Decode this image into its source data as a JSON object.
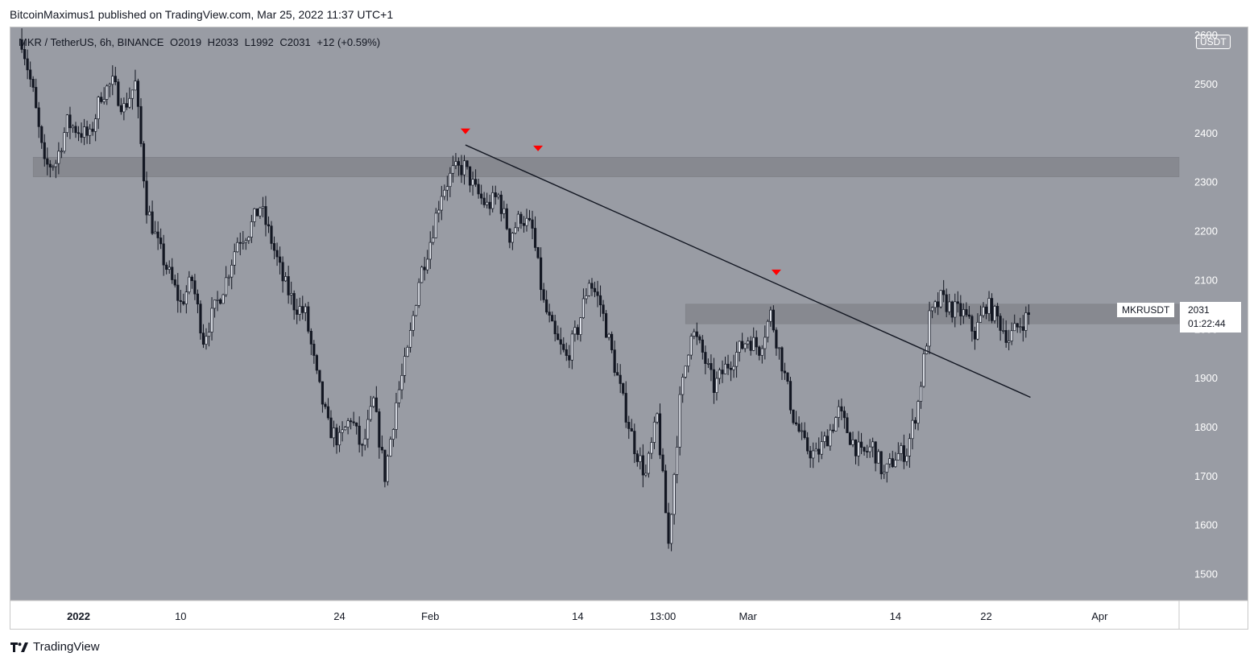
{
  "header": {
    "publish_line": "BitcoinMaximus1 published on TradingView.com, Mar 25, 2022 11:37 UTC+1"
  },
  "legend": {
    "symbol": "MKR / TetherUS, 6h, BINANCE",
    "o_label": "O",
    "o_value": "2019",
    "h_label": "H",
    "h_value": "2033",
    "l_label": "L",
    "l_value": "1992",
    "c_label": "C",
    "c_value": "2031",
    "change": "+12 (+0.59%)"
  },
  "axis": {
    "unit_badge": "USDT",
    "ticker_label": "MKRUSDT",
    "last_price": "2031",
    "countdown": "01:22:44"
  },
  "footer": {
    "brand": "TradingView"
  },
  "colors": {
    "plot_bg": "#999ca4",
    "candle": "#131722",
    "zone": "#85878e",
    "marker": "#ff0000",
    "axis_text": "#ffffff"
  },
  "chart_data": {
    "type": "candlestick",
    "ylim": [
      1445,
      2615
    ],
    "y_ticks": [
      1500,
      1600,
      1700,
      1800,
      1900,
      2000,
      2100,
      2200,
      2300,
      2400,
      2500,
      2600
    ],
    "x_range_days": [
      -6,
      97
    ],
    "x_ticks": [
      {
        "label": "2022",
        "day": 0
      },
      {
        "label": "10",
        "day": 9
      },
      {
        "label": "24",
        "day": 23
      },
      {
        "label": "Feb",
        "day": 31
      },
      {
        "label": "14",
        "day": 44
      },
      {
        "label": "13:00",
        "day": 51.5
      },
      {
        "label": "Mar",
        "day": 59
      },
      {
        "label": "14",
        "day": 72
      },
      {
        "label": "22",
        "day": 80
      },
      {
        "label": "Apr",
        "day": 90
      }
    ],
    "zones": [
      {
        "from_day": -4,
        "low": 2310,
        "high": 2350
      },
      {
        "from_day": 53.5,
        "low": 2010,
        "high": 2050
      }
    ],
    "trendline": {
      "start": [
        34.1,
        2375
      ],
      "end": [
        83.9,
        1860
      ]
    },
    "markers": [
      {
        "day": 34.1,
        "price": 2402
      },
      {
        "day": 40.5,
        "price": 2367
      },
      {
        "day": 61.5,
        "price": 2114
      }
    ],
    "key_points": [
      [
        -5,
        2590
      ],
      [
        -4,
        2480
      ],
      [
        -3,
        2330
      ],
      [
        -2,
        2340
      ],
      [
        -1,
        2420
      ],
      [
        1,
        2390
      ],
      [
        2,
        2480
      ],
      [
        3,
        2500
      ],
      [
        4,
        2450
      ],
      [
        5,
        2500
      ],
      [
        6,
        2250
      ],
      [
        7,
        2170
      ],
      [
        9,
        2050
      ],
      [
        10,
        2100
      ],
      [
        11,
        1980
      ],
      [
        13,
        2100
      ],
      [
        14,
        2180
      ],
      [
        15,
        2200
      ],
      [
        16,
        2250
      ],
      [
        17,
        2180
      ],
      [
        18,
        2100
      ],
      [
        19,
        2050
      ],
      [
        20,
        2030
      ],
      [
        21,
        1900
      ],
      [
        22,
        1800
      ],
      [
        23,
        1770
      ],
      [
        24,
        1820
      ],
      [
        25,
        1750
      ],
      [
        26,
        1850
      ],
      [
        27,
        1700
      ],
      [
        28,
        1850
      ],
      [
        29,
        1950
      ],
      [
        30,
        2100
      ],
      [
        31,
        2180
      ],
      [
        32,
        2280
      ],
      [
        33,
        2320
      ],
      [
        34,
        2330
      ],
      [
        35,
        2280
      ],
      [
        36,
        2250
      ],
      [
        37,
        2270
      ],
      [
        38,
        2190
      ],
      [
        39,
        2230
      ],
      [
        40,
        2200
      ],
      [
        41,
        2050
      ],
      [
        42,
        1980
      ],
      [
        43,
        1940
      ],
      [
        44,
        2000
      ],
      [
        45,
        2100
      ],
      [
        46,
        2050
      ],
      [
        47,
        1950
      ],
      [
        48,
        1850
      ],
      [
        49,
        1760
      ],
      [
        50,
        1700
      ],
      [
        51,
        1820
      ],
      [
        52,
        1560
      ],
      [
        53,
        1850
      ],
      [
        54,
        2000
      ],
      [
        55,
        1950
      ],
      [
        56,
        1880
      ],
      [
        57,
        1920
      ],
      [
        58,
        1950
      ],
      [
        59,
        1980
      ],
      [
        60,
        1960
      ],
      [
        61,
        2030
      ],
      [
        62,
        1930
      ],
      [
        63,
        1820
      ],
      [
        64,
        1760
      ],
      [
        65,
        1740
      ],
      [
        66,
        1780
      ],
      [
        67,
        1830
      ],
      [
        68,
        1780
      ],
      [
        69,
        1740
      ],
      [
        70,
        1760
      ],
      [
        71,
        1700
      ],
      [
        72,
        1740
      ],
      [
        73,
        1750
      ],
      [
        74,
        1850
      ],
      [
        75,
        2020
      ],
      [
        76,
        2060
      ],
      [
        77,
        2040
      ],
      [
        78,
        2030
      ],
      [
        79,
        1990
      ],
      [
        80,
        2050
      ],
      [
        81,
        2020
      ],
      [
        82,
        1980
      ],
      [
        83,
        2010
      ],
      [
        83.9,
        2031
      ]
    ]
  }
}
